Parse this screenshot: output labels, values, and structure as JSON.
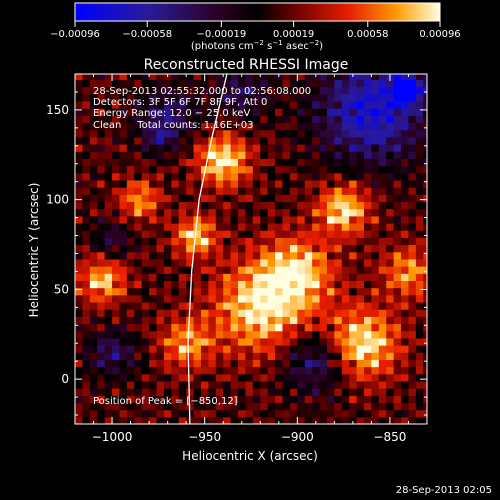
{
  "chart_data": {
    "type": "heatmap",
    "title": "Reconstructed RHESSI Image",
    "xlabel": "Heliocentric X (arcsec)",
    "ylabel": "Heliocentric Y (arcsec)",
    "xlim": [
      -1020,
      -830
    ],
    "ylim": [
      -25,
      170
    ],
    "xticks": [
      -1000,
      -950,
      -900,
      -850
    ],
    "xtick_labels": [
      "−1000",
      "−950",
      "−900",
      "−850"
    ],
    "yticks": [
      0,
      50,
      100,
      150
    ],
    "ytick_labels": [
      "0",
      "50",
      "100",
      "150"
    ],
    "colorbar": {
      "min": -0.00096,
      "max": 0.00096,
      "ticks": [
        -0.00096,
        -0.00058,
        -0.00019,
        0.00019,
        0.00058,
        0.00096
      ],
      "tick_labels": [
        "−0.00096",
        "−0.00058",
        "−0.00019",
        "0.00019",
        "0.00058",
        "0.00096"
      ],
      "unit_main": "(photons cm",
      "unit_sup1": "−2",
      "unit_mid": " s",
      "unit_sup2": "−1",
      "unit_end": " asec",
      "unit_sup3": "−2",
      "unit_close": ")"
    },
    "limb_curve": [
      [
        -958,
        -25
      ],
      [
        -959,
        20
      ],
      [
        -957,
        60
      ],
      [
        -953,
        100
      ],
      [
        -946,
        135
      ],
      [
        -938,
        170
      ]
    ],
    "bright_regions": [
      {
        "x": -865,
        "y": 20,
        "sigma": 14,
        "value": 0.00085
      },
      {
        "x": -920,
        "y": 40,
        "sigma": 18,
        "value": 0.0008
      },
      {
        "x": -940,
        "y": 122,
        "sigma": 10,
        "value": 0.00085
      },
      {
        "x": -875,
        "y": 95,
        "sigma": 10,
        "value": 0.0008
      },
      {
        "x": -955,
        "y": 80,
        "sigma": 8,
        "value": 0.00075
      },
      {
        "x": -1005,
        "y": 55,
        "sigma": 9,
        "value": 0.0007
      },
      {
        "x": -985,
        "y": 100,
        "sigma": 8,
        "value": 0.0006
      },
      {
        "x": -960,
        "y": 20,
        "sigma": 10,
        "value": 0.0006
      },
      {
        "x": -900,
        "y": 60,
        "sigma": 14,
        "value": 0.0007
      },
      {
        "x": -840,
        "y": 60,
        "sigma": 10,
        "value": 0.0006
      }
    ],
    "dark_regions": [
      {
        "x": -860,
        "y": 150,
        "sigma": 20,
        "value": -0.0009
      },
      {
        "x": -840,
        "y": 162,
        "sigma": 6,
        "value": -0.00096
      },
      {
        "x": -970,
        "y": 148,
        "sigma": 11,
        "value": -0.0005
      },
      {
        "x": -930,
        "y": 160,
        "sigma": 10,
        "value": -0.00045
      },
      {
        "x": -1000,
        "y": 15,
        "sigma": 9,
        "value": -0.0005
      },
      {
        "x": -1000,
        "y": 78,
        "sigma": 7,
        "value": -0.0004
      },
      {
        "x": -890,
        "y": 10,
        "sigma": 12,
        "value": -0.0006
      },
      {
        "x": -975,
        "y": 135,
        "sigma": 6,
        "value": -0.0004
      }
    ]
  },
  "info": {
    "line1": "28-Sep-2013 02:55:32.000 to 02:56:08.000",
    "line2": "Detectors: 3F 5F 6F 7F 8F 9F, Att 0",
    "line3": "Energy Range: 12.0 − 25.0 keV",
    "line4": "Clean     Total counts: 1.16E+03",
    "peak": "Position of Peak = [−850,12]"
  },
  "timestamp": "28-Sep-2013 02:05"
}
